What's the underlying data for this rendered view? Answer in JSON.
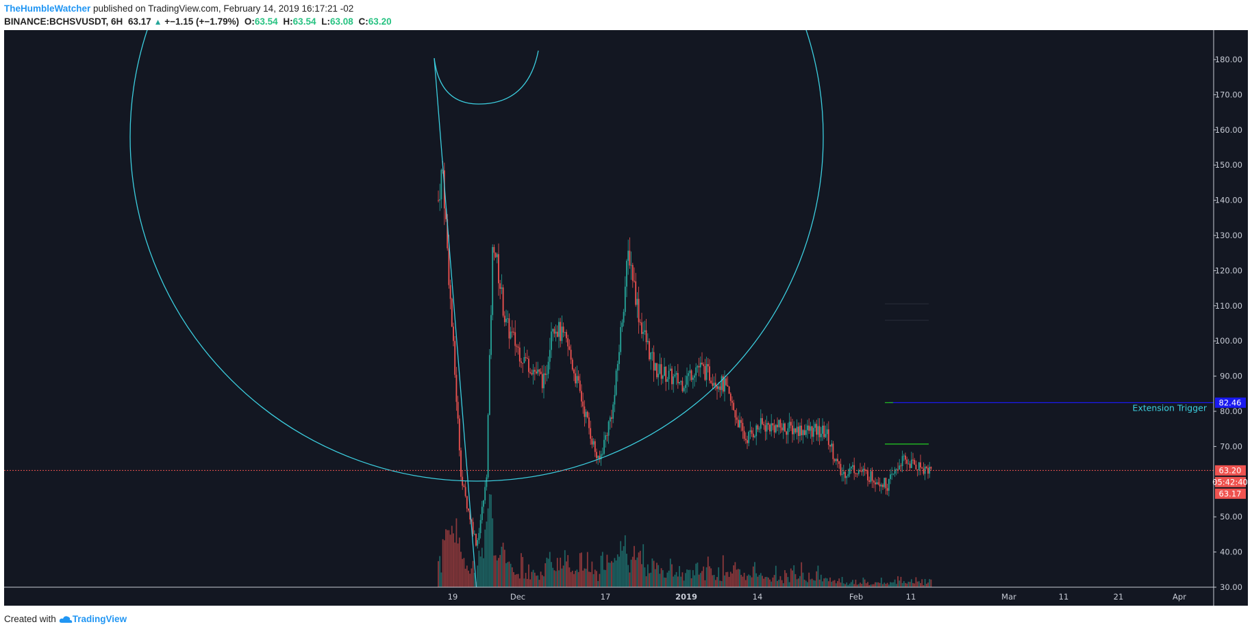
{
  "header": {
    "author": "TheHumbleWatcher",
    "published": " published on TradingView.com, February 14, 2019 16:17:21 -02",
    "symbol": "BINANCE:BCHSVUSDT, 6H",
    "last": "63.17",
    "change": "+−1.15 (+−1.79%)",
    "o_label": "O:",
    "o_val": "63.54",
    "h_label": "H:",
    "h_val": "63.54",
    "l_label": "L:",
    "l_val": "63.08",
    "c_label": "C:",
    "c_val": "63.20"
  },
  "footer": {
    "created_with": "Created with",
    "brand": "TradingView"
  },
  "colors": {
    "background": "#131722",
    "up": "#26a69a",
    "down": "#ef5350",
    "cyan": "#3ccfe0",
    "trigger": "#1a1af0",
    "green_line": "#22c022",
    "price_line": "#ef5350"
  },
  "chart_data": {
    "type": "candlestick",
    "y_range": [
      30,
      180
    ],
    "y_ticks": [
      "180.00",
      "170.00",
      "160.00",
      "150.00",
      "140.00",
      "130.00",
      "120.00",
      "110.00",
      "100.00",
      "90.00",
      "80.00",
      "70.00",
      "60.00",
      "50.00",
      "40.00",
      "30.00"
    ],
    "x_ticks": [
      "19",
      "Dec",
      "17",
      "2019",
      "14",
      "Feb",
      "11",
      "Mar",
      "11",
      "21",
      "Apr"
    ],
    "price_series": [
      [
        "19",
        140
      ],
      [
        "",
        150
      ],
      [
        "",
        110
      ],
      [
        "",
        60
      ],
      [
        "",
        42
      ],
      [
        "",
        60
      ],
      [
        "",
        130
      ],
      [
        "Dec",
        105
      ],
      [
        "",
        96
      ],
      [
        "",
        88
      ],
      [
        "",
        106
      ],
      [
        "",
        99
      ],
      [
        "17",
        65
      ],
      [
        "",
        82
      ],
      [
        "",
        126
      ],
      [
        "",
        106
      ],
      [
        "",
        92
      ],
      [
        "",
        88
      ],
      [
        "2019",
        93
      ],
      [
        "",
        87
      ],
      [
        "",
        72
      ],
      [
        "14",
        76
      ],
      [
        "",
        75
      ],
      [
        "",
        74
      ],
      [
        "",
        62
      ],
      [
        "Feb",
        64
      ],
      [
        "",
        59
      ],
      [
        "11",
        66
      ],
      [
        "",
        63.2
      ]
    ],
    "annotations": {
      "extension_trigger_label": "Extension Trigger",
      "extension_trigger_price": "82.46",
      "green_level": 70.7,
      "current_price_tag": "63.20",
      "countdown_tag": "05:42:40",
      "last_price_tag": "63.17"
    }
  }
}
